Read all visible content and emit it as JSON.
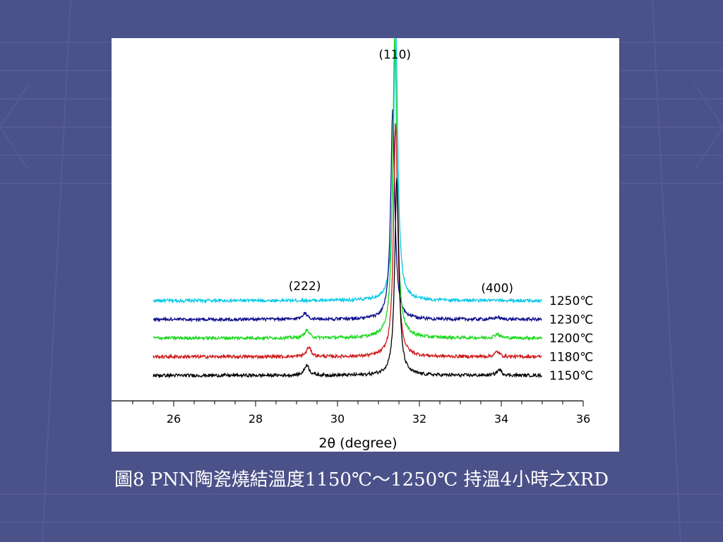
{
  "slide": {
    "caption": "圖8 PNN陶瓷燒結溫度1150℃～1250℃ 持溫4小時之XRD",
    "background_color": "#4b5189"
  },
  "chart_data": {
    "type": "line",
    "title": "",
    "xlabel": "2θ (degree)",
    "ylabel": "",
    "xlim": [
      25,
      36
    ],
    "x_ticks": [
      26,
      28,
      30,
      32,
      34,
      36
    ],
    "x_tick_labels": [
      "26",
      "28",
      "30",
      "32",
      "34",
      "36"
    ],
    "y_scale": "intensity (arbitrary units, offset per series)",
    "grid": false,
    "legend": "none; series labels printed at right end of each trace",
    "peak_labels": [
      {
        "text": "(222)",
        "x": 29.2
      },
      {
        "text": "(110)",
        "x": 31.4
      },
      {
        "text": "(400)",
        "x": 33.9
      }
    ],
    "series": [
      {
        "name": "1250℃",
        "color": "#00c8e6",
        "baseline": 4,
        "peaks": [
          {
            "x": 31.42,
            "height": 40
          }
        ]
      },
      {
        "name": "1230℃",
        "color": "#0a0a8c",
        "baseline": 3,
        "peaks": [
          {
            "x": 29.2,
            "height": 0.9
          },
          {
            "x": 31.35,
            "height": 30
          },
          {
            "x": 33.9,
            "height": 0.3
          }
        ]
      },
      {
        "name": "1200℃",
        "color": "#18d81c",
        "baseline": 2,
        "peaks": [
          {
            "x": 29.25,
            "height": 1.1
          },
          {
            "x": 31.4,
            "height": 43
          },
          {
            "x": 33.9,
            "height": 0.6
          }
        ]
      },
      {
        "name": "1180℃",
        "color": "#d01818",
        "baseline": 1,
        "peaks": [
          {
            "x": 29.3,
            "height": 1.3
          },
          {
            "x": 31.42,
            "height": 33
          },
          {
            "x": 33.9,
            "height": 0.7
          }
        ]
      },
      {
        "name": "1150℃",
        "color": "#000000",
        "baseline": 0,
        "peaks": [
          {
            "x": 29.25,
            "height": 1.5
          },
          {
            "x": 31.45,
            "height": 28
          },
          {
            "x": 33.95,
            "height": 0.8
          }
        ]
      }
    ]
  }
}
